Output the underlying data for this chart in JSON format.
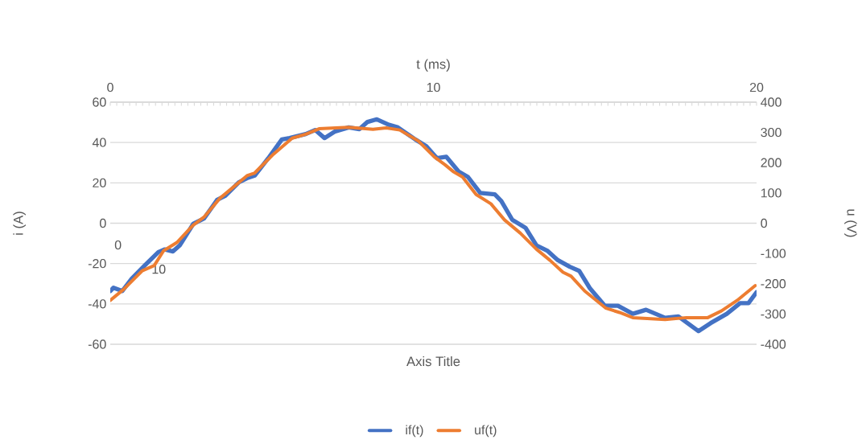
{
  "chart_data": {
    "type": "line",
    "xlabel": "t (ms)",
    "ylabel": "i (A)",
    "y2label": "u (V)",
    "xlim": [
      0,
      20
    ],
    "xticks": [
      0,
      10,
      20
    ],
    "ylim": [
      -60,
      60
    ],
    "yticks": [
      -60,
      -40,
      -20,
      0,
      20,
      40,
      60
    ],
    "y2lim": [
      -400,
      400
    ],
    "y2ticks": [
      -400,
      -300,
      -200,
      -100,
      0,
      100,
      200,
      300,
      400
    ],
    "grid": "y",
    "legend": "bottom",
    "line_style": "solid",
    "marker": "none",
    "annotations": [
      "Axis Title",
      "0",
      "10"
    ],
    "series": [
      {
        "name": "if(t)",
        "color": "#4472c4",
        "x": [
          0,
          0.1,
          0.37,
          0.66,
          1.07,
          1.49,
          1.69,
          1.94,
          2.15,
          2.57,
          2.9,
          3.31,
          3.56,
          3.98,
          4.23,
          4.47,
          4.89,
          5.31,
          5.55,
          6.05,
          6.34,
          6.63,
          6.96,
          7.38,
          7.71,
          7.96,
          8.25,
          8.62,
          8.9,
          9.44,
          9.78,
          10.11,
          10.4,
          10.78,
          11.07,
          11.45,
          11.9,
          12.1,
          12.44,
          12.85,
          13.19,
          13.52,
          13.85,
          14.22,
          14.51,
          14.84,
          15.3,
          15.71,
          16.17,
          16.58,
          17.17,
          17.58,
          18.2,
          18.58,
          19.08,
          19.49,
          19.75,
          20
        ],
        "values": [
          -33.6,
          -32,
          -33.6,
          -27.6,
          -20.9,
          -14.3,
          -13,
          -14,
          -11,
          -0.3,
          2.3,
          11.6,
          13.6,
          20.3,
          22.3,
          23.6,
          32.2,
          41.5,
          42.2,
          44.2,
          46.2,
          42.2,
          45.5,
          47.5,
          46.6,
          50.2,
          51.5,
          48.8,
          47.5,
          41.5,
          38.2,
          32.2,
          32.9,
          25.6,
          22.9,
          15,
          14.3,
          11,
          1.7,
          -2.3,
          -11,
          -13.6,
          -18.3,
          -21.6,
          -23.6,
          -32.2,
          -40.9,
          -40.9,
          -44.9,
          -42.9,
          -46.9,
          -46.2,
          -53.5,
          -49.5,
          -44.9,
          -39.6,
          -39.6,
          -34.2
        ]
      },
      {
        "name": "uf(t)",
        "color": "#ed7d31",
        "axis": "y2",
        "x": [
          0,
          0.41,
          0.99,
          1.36,
          1.65,
          2.06,
          2.56,
          2.9,
          3.39,
          4.23,
          4.47,
          5.05,
          5.63,
          6.05,
          6.46,
          7.38,
          8.13,
          8.54,
          8.96,
          9.53,
          10.03,
          10.36,
          10.61,
          10.9,
          11.32,
          11.78,
          12.2,
          12.69,
          13.19,
          13.6,
          14.01,
          14.26,
          14.68,
          15.34,
          15.76,
          16.17,
          17.17,
          17.83,
          18.49,
          18.91,
          19.4,
          19.96
        ],
        "values": [
          -255,
          -219,
          -157,
          -140,
          -91,
          -64,
          -7,
          20,
          82,
          157,
          166,
          228,
          281,
          294,
          312,
          317,
          310,
          315,
          308,
          272,
          219,
          193,
          171,
          153,
          95,
          64,
          11,
          -33,
          -86,
          -122,
          -162,
          -175,
          -224,
          -281,
          -295,
          -312,
          -318,
          -312,
          -312,
          -290,
          -255,
          -206
        ]
      }
    ]
  }
}
